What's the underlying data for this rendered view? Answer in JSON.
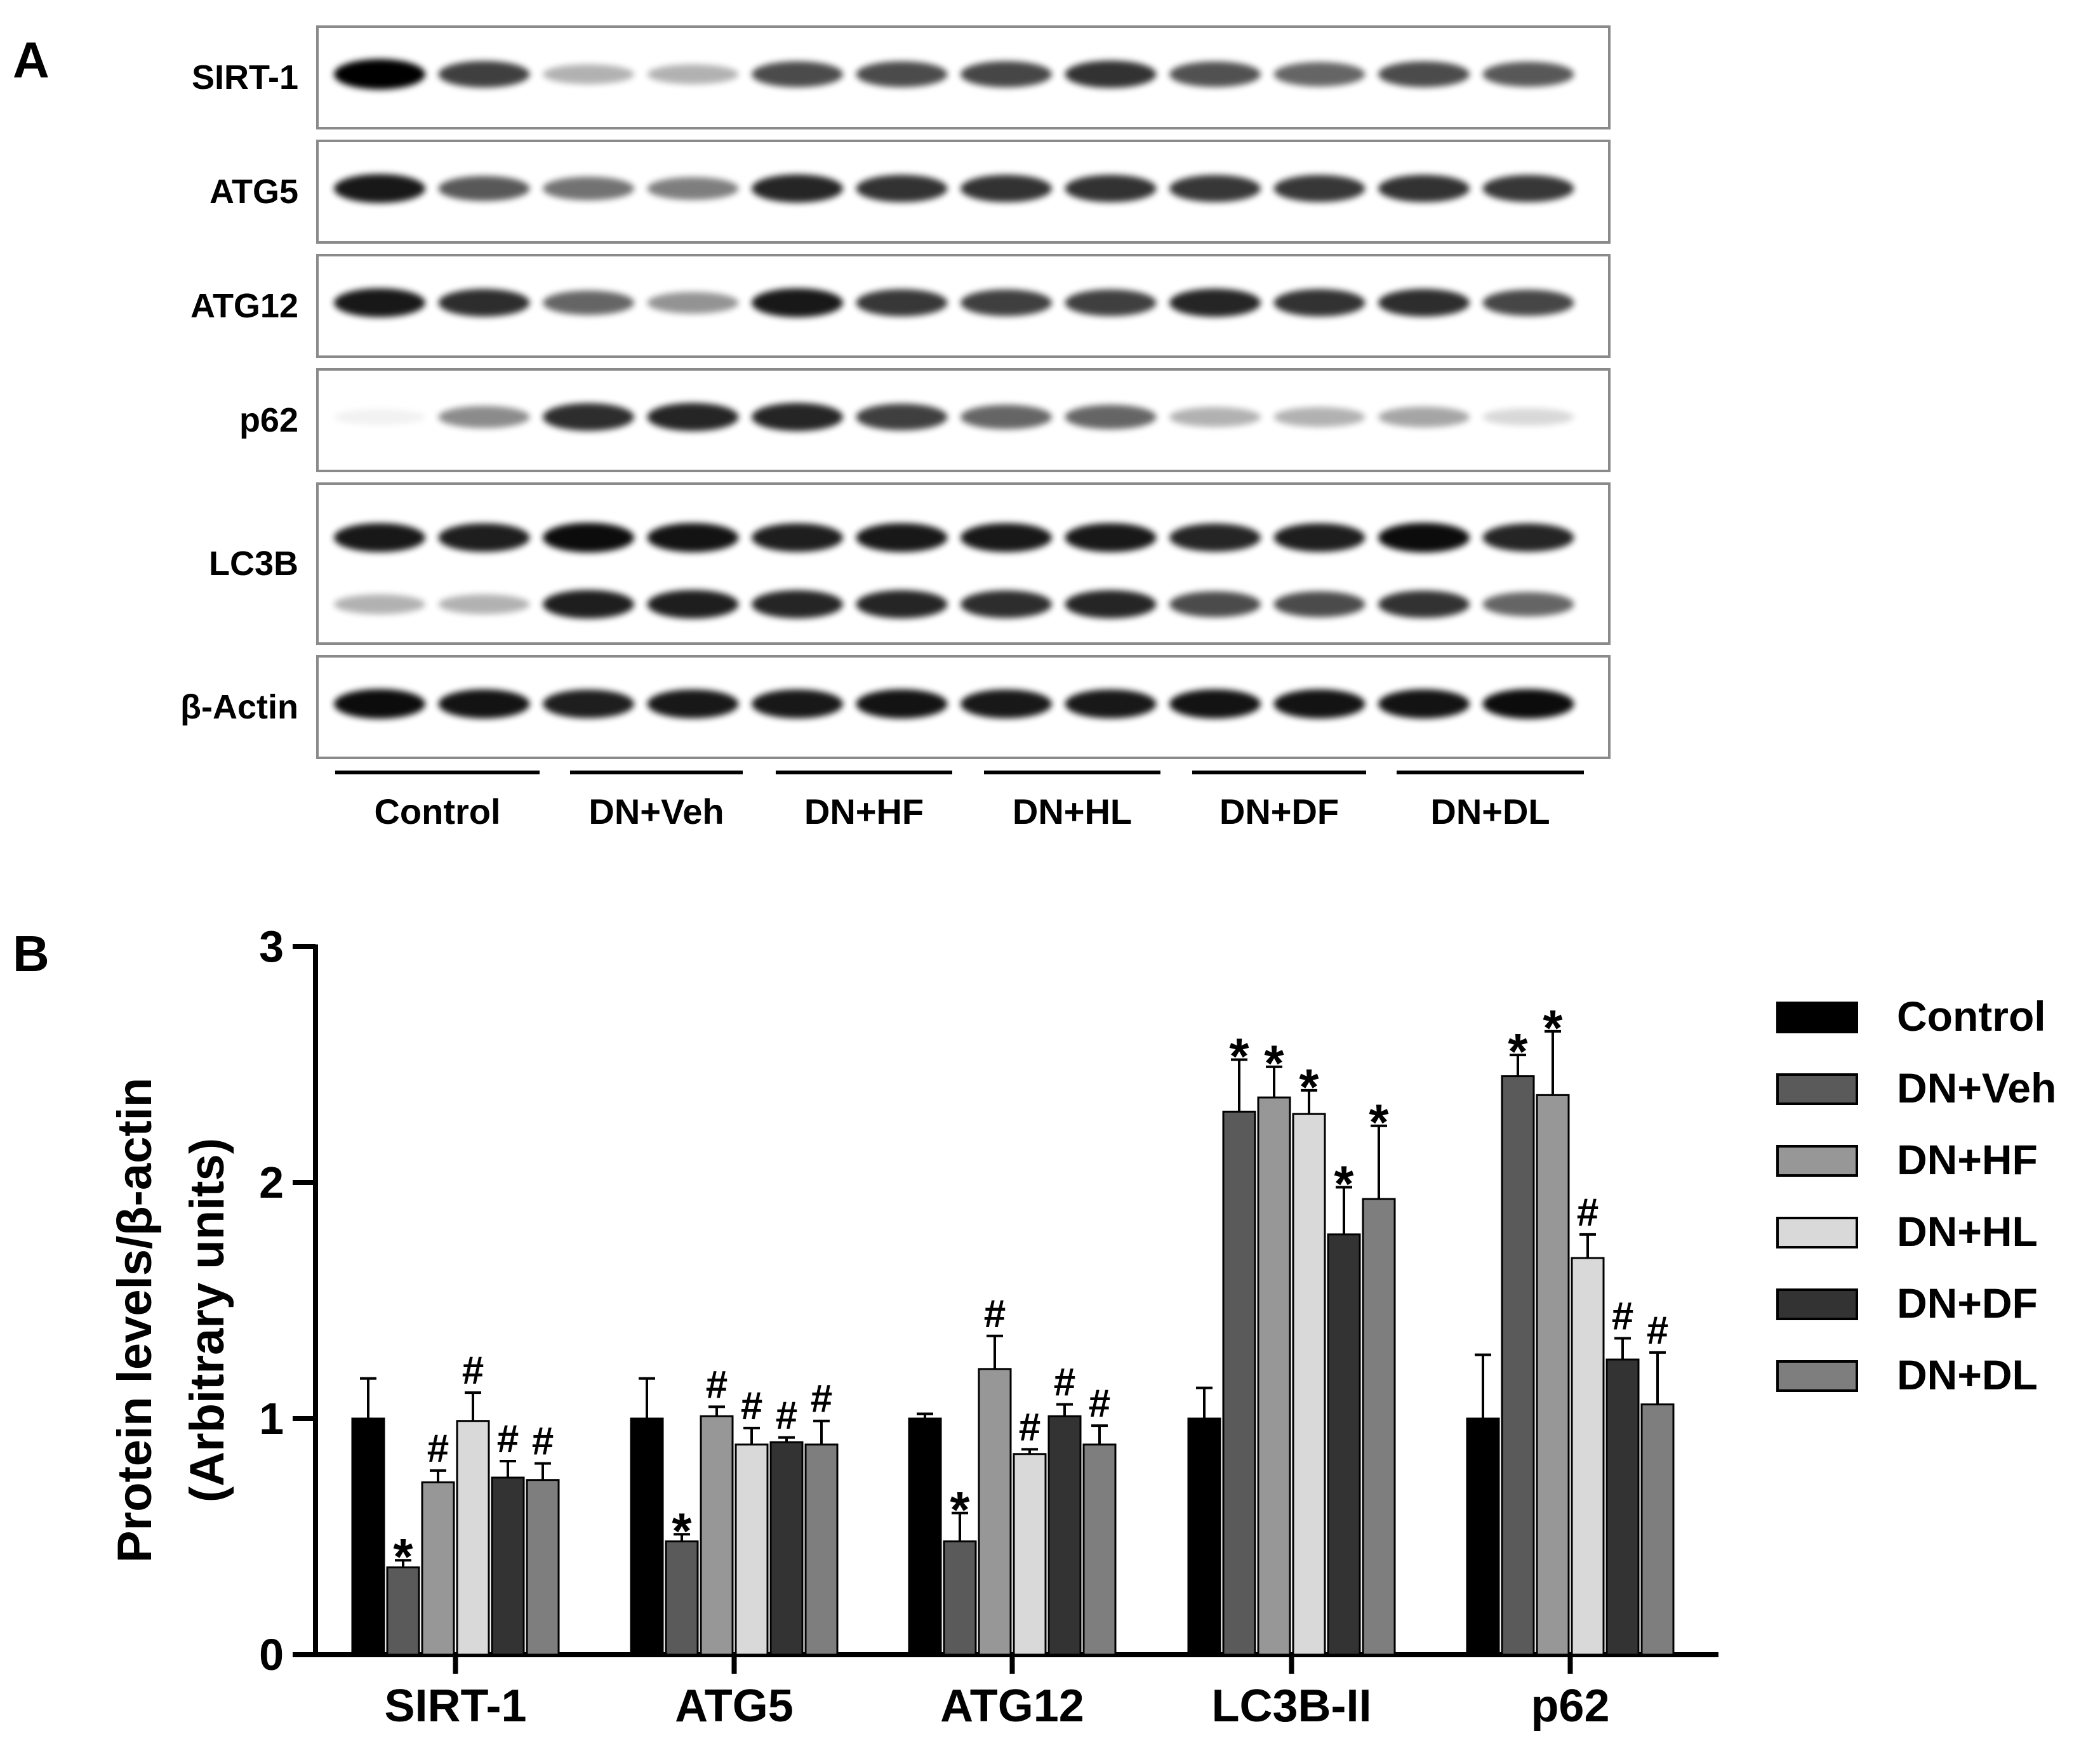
{
  "panels": {
    "a": "A",
    "b": "B"
  },
  "blot": {
    "proteins": [
      {
        "name": "SIRT-1",
        "intensities": [
          [
            1.0,
            0.75
          ],
          [
            0.3,
            0.3
          ],
          [
            0.7,
            0.7
          ],
          [
            0.72,
            0.8
          ],
          [
            0.68,
            0.6
          ],
          [
            0.7,
            0.65
          ]
        ]
      },
      {
        "name": "ATG5",
        "intensities": [
          [
            0.9,
            0.65
          ],
          [
            0.55,
            0.5
          ],
          [
            0.85,
            0.8
          ],
          [
            0.8,
            0.8
          ],
          [
            0.78,
            0.78
          ],
          [
            0.8,
            0.78
          ]
        ]
      },
      {
        "name": "ATG12",
        "intensities": [
          [
            0.9,
            0.82
          ],
          [
            0.6,
            0.42
          ],
          [
            0.9,
            0.78
          ],
          [
            0.75,
            0.75
          ],
          [
            0.85,
            0.8
          ],
          [
            0.82,
            0.72
          ]
        ]
      },
      {
        "name": "p62",
        "intensities": [
          [
            0.05,
            0.45
          ],
          [
            0.82,
            0.85
          ],
          [
            0.85,
            0.75
          ],
          [
            0.6,
            0.6
          ],
          [
            0.3,
            0.3
          ],
          [
            0.35,
            0.15
          ]
        ]
      },
      {
        "name": "LC3B",
        "intensities": [
          [
            0.9,
            0.88
          ],
          [
            0.95,
            0.92
          ],
          [
            0.88,
            0.9
          ],
          [
            0.9,
            0.9
          ],
          [
            0.85,
            0.88
          ],
          [
            0.95,
            0.85
          ]
        ],
        "second_band": [
          [
            0.3,
            0.3
          ],
          [
            0.88,
            0.88
          ],
          [
            0.85,
            0.85
          ],
          [
            0.82,
            0.85
          ],
          [
            0.7,
            0.7
          ],
          [
            0.8,
            0.6
          ]
        ]
      },
      {
        "name": "β-Actin",
        "intensities": [
          [
            0.95,
            0.92
          ],
          [
            0.88,
            0.9
          ],
          [
            0.9,
            0.92
          ],
          [
            0.9,
            0.9
          ],
          [
            0.92,
            0.92
          ],
          [
            0.92,
            0.95
          ]
        ]
      }
    ],
    "groups": [
      "Control",
      "DN+Veh",
      "DN+HF",
      "DN+HL",
      "DN+DF",
      "DN+DL"
    ]
  },
  "chart_data": {
    "type": "bar",
    "ylabel_line1": "Protein levels/β-actin",
    "ylabel_line2": "(Arbitrary units)",
    "ylim": [
      0,
      3
    ],
    "yticks": [
      0,
      1,
      2,
      3
    ],
    "ytick_labels": [
      "0",
      "1",
      "2",
      "3"
    ],
    "categories": [
      "SIRT-1",
      "ATG5",
      "ATG12",
      "LC3B-II",
      "p62"
    ],
    "series": [
      {
        "name": "Control",
        "color": "#000000",
        "values": [
          1.0,
          1.0,
          1.0,
          1.0,
          1.0
        ],
        "errors": [
          0.17,
          0.17,
          0.02,
          0.13,
          0.27
        ],
        "marks": [
          "",
          "",
          "",
          "",
          ""
        ]
      },
      {
        "name": "DN+Veh",
        "color": "#5a5a5a",
        "values": [
          0.37,
          0.48,
          0.48,
          2.3,
          2.45
        ],
        "errors": [
          0.03,
          0.03,
          0.12,
          0.22,
          0.09
        ],
        "marks": [
          "*",
          "*",
          "*",
          "*",
          "*"
        ]
      },
      {
        "name": "DN+HF",
        "color": "#979797",
        "values": [
          0.73,
          1.01,
          1.21,
          2.36,
          2.37
        ],
        "errors": [
          0.05,
          0.04,
          0.14,
          0.13,
          0.27
        ],
        "marks": [
          "#",
          "#",
          "#",
          "*",
          "*"
        ]
      },
      {
        "name": "DN+HL",
        "color": "#d9d9d9",
        "values": [
          0.99,
          0.89,
          0.85,
          2.29,
          1.68
        ],
        "errors": [
          0.12,
          0.07,
          0.02,
          0.1,
          0.1
        ],
        "marks": [
          "#",
          "#",
          "#",
          "*",
          "#"
        ]
      },
      {
        "name": "DN+DF",
        "color": "#333333",
        "values": [
          0.75,
          0.9,
          1.01,
          1.78,
          1.25
        ],
        "errors": [
          0.07,
          0.02,
          0.05,
          0.2,
          0.09
        ],
        "marks": [
          "#",
          "#",
          "#",
          "*",
          "#"
        ]
      },
      {
        "name": "DN+DL",
        "color": "#7e7e7e",
        "values": [
          0.74,
          0.89,
          0.89,
          1.93,
          1.06
        ],
        "errors": [
          0.07,
          0.1,
          0.08,
          0.31,
          0.22
        ],
        "marks": [
          "#",
          "#",
          "#",
          "*",
          "#"
        ]
      }
    ],
    "legend_position": "right"
  }
}
